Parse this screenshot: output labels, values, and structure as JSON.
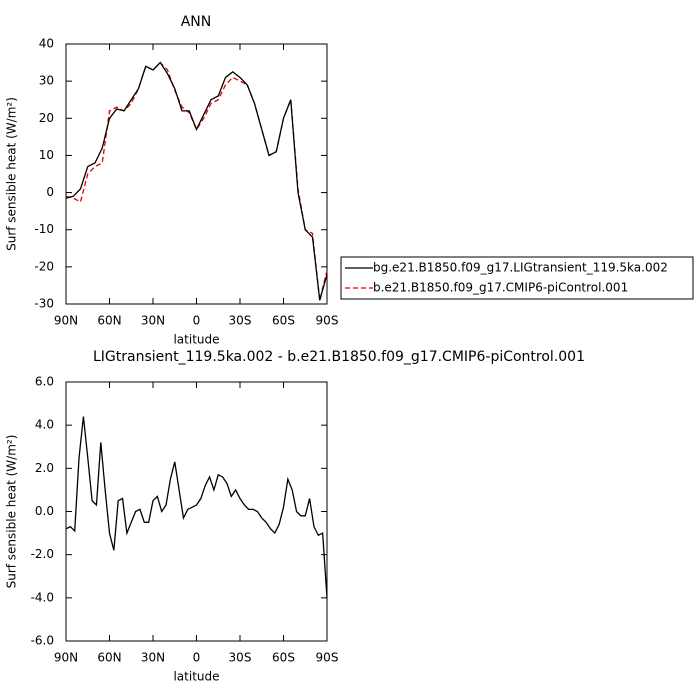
{
  "chart_data": [
    {
      "type": "line",
      "title": "ANN",
      "ylabel": "Surf sensible heat (W/m²)",
      "xlabel": "latitude",
      "x": [
        90,
        85,
        80,
        75,
        70,
        65,
        60,
        55,
        50,
        45,
        40,
        35,
        30,
        25,
        20,
        15,
        10,
        5,
        0,
        -5,
        -10,
        -15,
        -20,
        -25,
        -30,
        -35,
        -40,
        -45,
        -50,
        -55,
        -60,
        -65,
        -70,
        -75,
        -80,
        -85,
        -90
      ],
      "series": [
        {
          "name": "b.e21.B1850.f09_g17.CMIP6-piControl.001",
          "color": "#e00000",
          "dash": "dashed",
          "values": [
            -1,
            -1.5,
            -2.5,
            5,
            7,
            8,
            22,
            23,
            22,
            24,
            28,
            34,
            33,
            35,
            33,
            27.5,
            23,
            21.5,
            17,
            20,
            24,
            25,
            29,
            31,
            30,
            29,
            24,
            17,
            10,
            11,
            20,
            25,
            1,
            -10,
            -11,
            -29,
            -21
          ]
        },
        {
          "name": "bg.e21.B1850.f09_g17.LIGtransient_119.5ka.002",
          "color": "#000000",
          "dash": "solid",
          "values": [
            -1.5,
            -1,
            1,
            7,
            8,
            12,
            20,
            22.5,
            22,
            25,
            28,
            34,
            33,
            35,
            32,
            28,
            22,
            22,
            17,
            21,
            25,
            26,
            31,
            32.5,
            31,
            29,
            24,
            17,
            10,
            11,
            20,
            25,
            0,
            -10,
            -12,
            -29,
            -22
          ]
        }
      ],
      "xlim": [
        90,
        -90
      ],
      "xticks": [
        {
          "value": 90,
          "label": "90N"
        },
        {
          "value": 60,
          "label": "60N"
        },
        {
          "value": 30,
          "label": "30N"
        },
        0,
        {
          "value": -30,
          "label": "30S"
        },
        {
          "value": -60,
          "label": "60S"
        },
        {
          "value": -90,
          "label": "90S"
        }
      ],
      "ylim": [
        -30,
        40
      ],
      "yticks": [
        -30,
        -20,
        -10,
        0,
        10,
        20,
        30,
        40
      ],
      "legend": "right"
    },
    {
      "type": "line",
      "title": "LIGtransient_119.5ka.002 - b.e21.B1850.f09_g17.CMIP6-piControl.001",
      "ylabel": "Surf sensible heat (W/m²)",
      "xlabel": "latitude",
      "x": [
        90,
        87,
        84,
        81,
        78,
        75,
        72,
        69,
        66,
        63,
        60,
        57,
        54,
        51,
        48,
        45,
        42,
        39,
        36,
        33,
        30,
        27,
        24,
        21,
        18,
        15,
        12,
        9,
        6,
        3,
        0,
        -3,
        -6,
        -9,
        -12,
        -15,
        -18,
        -21,
        -24,
        -27,
        -30,
        -33,
        -36,
        -39,
        -42,
        -45,
        -48,
        -51,
        -54,
        -57,
        -60,
        -63,
        -66,
        -69,
        -72,
        -75,
        -78,
        -81,
        -84,
        -87,
        -90
      ],
      "series": [
        {
          "color": "#000000",
          "dash": "solid",
          "values": [
            -0.8,
            -0.7,
            -0.9,
            2.5,
            4.4,
            2.5,
            0.5,
            0.3,
            3.2,
            1.0,
            -1.0,
            -1.8,
            0.5,
            0.6,
            -1.0,
            -0.5,
            0.0,
            0.1,
            -0.5,
            -0.5,
            0.5,
            0.7,
            0.0,
            0.3,
            1.5,
            2.3,
            1.0,
            -0.3,
            0.1,
            0.2,
            0.3,
            0.6,
            1.2,
            1.6,
            1.0,
            1.7,
            1.6,
            1.3,
            0.7,
            1.0,
            0.6,
            0.3,
            0.1,
            0.1,
            0.0,
            -0.3,
            -0.5,
            -0.8,
            -1.0,
            -0.6,
            0.2,
            1.5,
            1.0,
            0.0,
            -0.2,
            -0.2,
            0.6,
            -0.7,
            -1.1,
            -1.0,
            -4.0
          ]
        }
      ],
      "xlim": [
        90,
        -90
      ],
      "xticks": [
        {
          "value": 90,
          "label": "90N"
        },
        {
          "value": 60,
          "label": "60N"
        },
        {
          "value": 30,
          "label": "30N"
        },
        0,
        {
          "value": -30,
          "label": "30S"
        },
        {
          "value": -60,
          "label": "60S"
        },
        {
          "value": -90,
          "label": "90S"
        }
      ],
      "ylim": [
        -6,
        6
      ],
      "yticks": [
        {
          "value": -6,
          "label": "-6.0"
        },
        {
          "value": -4,
          "label": "-4.0"
        },
        {
          "value": -2,
          "label": "-2.0"
        },
        {
          "value": 0,
          "label": "0.0"
        },
        {
          "value": 2,
          "label": "2.0"
        },
        {
          "value": 4,
          "label": "4.0"
        },
        {
          "value": 6,
          "label": "6.0"
        }
      ]
    }
  ]
}
